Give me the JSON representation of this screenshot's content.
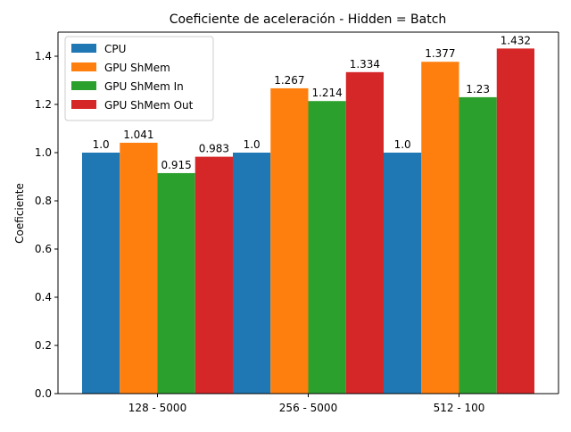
{
  "chart_data": {
    "type": "bar",
    "title": "Coeficiente de aceleración - Hidden = Batch",
    "xlabel": "",
    "ylabel": "Coeficiente",
    "ylim": [
      0,
      1.5
    ],
    "yticks": [
      "0.0",
      "0.2",
      "0.4",
      "0.6",
      "0.8",
      "1.0",
      "1.2",
      "1.4"
    ],
    "categories": [
      "128 - 5000",
      "256 - 5000",
      "512 - 100"
    ],
    "grid": false,
    "legend_position": "top-left",
    "series": [
      {
        "name": "CPU",
        "color": "#1f77b4",
        "values": [
          1.0,
          1.0,
          1.0
        ],
        "labels": [
          "1.0",
          "1.0",
          "1.0"
        ]
      },
      {
        "name": "GPU ShMem",
        "color": "#ff7f0e",
        "values": [
          1.041,
          1.267,
          1.377
        ],
        "labels": [
          "1.041",
          "1.267",
          "1.377"
        ]
      },
      {
        "name": "GPU ShMem In",
        "color": "#2ca02c",
        "values": [
          0.915,
          1.214,
          1.23
        ],
        "labels": [
          "0.915",
          "1.214",
          "1.23"
        ]
      },
      {
        "name": "GPU ShMem Out",
        "color": "#d62728",
        "values": [
          0.983,
          1.334,
          1.432
        ],
        "labels": [
          "0.983",
          "1.334",
          "1.432"
        ]
      }
    ]
  }
}
